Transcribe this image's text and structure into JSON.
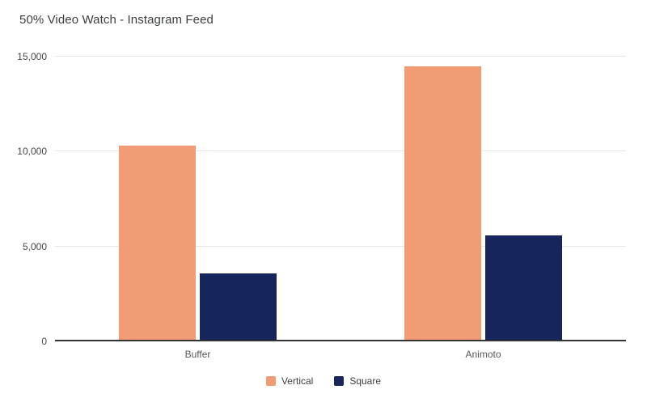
{
  "chart_data": {
    "type": "bar",
    "title": "50% Video Watch - Instagram Feed",
    "categories": [
      "Buffer",
      "Animoto"
    ],
    "series": [
      {
        "name": "Vertical",
        "color": "#f29c75",
        "values": [
          10300,
          14500
        ]
      },
      {
        "name": "Square",
        "color": "#16265c",
        "values": [
          3600,
          5600
        ]
      }
    ],
    "xlabel": "",
    "ylabel": "",
    "ylim": [
      0,
      15000
    ],
    "yticks": [
      0,
      5000,
      10000,
      15000
    ],
    "grid": true,
    "legend_position": "bottom"
  },
  "colors": {
    "grid": "#e6e6e6",
    "baseline": "#333333",
    "tick_text": "#44474a",
    "title_text": "#3c4043"
  }
}
